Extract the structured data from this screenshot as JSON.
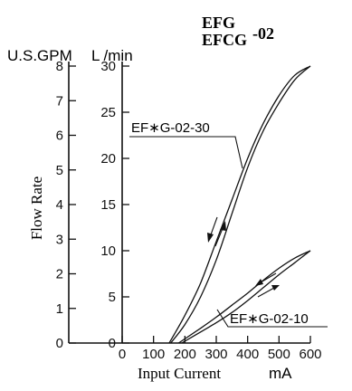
{
  "chart_data": {
    "type": "line",
    "title_line1": "EFG",
    "title_line2": "EFCG",
    "title_suffix": "-02",
    "xlabel": "Input Current",
    "xunit": "mA",
    "ylabel": "Flow Rate",
    "y_left_unit": "U.S.GPM",
    "y_right_unit": "L /min",
    "xlim": [
      0,
      600
    ],
    "ylim_lpm": [
      0,
      30
    ],
    "ylim_gpm": [
      0,
      8
    ],
    "x_ticks": [
      0,
      100,
      200,
      300,
      400,
      500,
      600
    ],
    "y_ticks_lpm": [
      0,
      5,
      10,
      15,
      20,
      25,
      30
    ],
    "y_ticks_gpm": [
      0,
      1,
      2,
      3,
      4,
      5,
      6,
      7,
      8
    ],
    "series": [
      {
        "name": "EF∗G-02-30",
        "increasing": [
          [
            155,
            0
          ],
          [
            200,
            2
          ],
          [
            250,
            5
          ],
          [
            300,
            9
          ],
          [
            350,
            14
          ],
          [
            400,
            19
          ],
          [
            450,
            23
          ],
          [
            500,
            26
          ],
          [
            550,
            28.5
          ],
          [
            600,
            30
          ]
        ],
        "decreasing": [
          [
            150,
            0
          ],
          [
            200,
            3
          ],
          [
            250,
            6.5
          ],
          [
            300,
            11
          ],
          [
            350,
            15.5
          ],
          [
            400,
            20
          ],
          [
            450,
            23.8
          ],
          [
            500,
            26.8
          ],
          [
            550,
            29
          ],
          [
            600,
            30
          ]
        ]
      },
      {
        "name": "EF∗G-02-10",
        "increasing": [
          [
            190,
            0
          ],
          [
            250,
            1.2
          ],
          [
            300,
            2.2
          ],
          [
            350,
            3.3
          ],
          [
            400,
            4.6
          ],
          [
            450,
            6
          ],
          [
            500,
            7.4
          ],
          [
            550,
            8.7
          ],
          [
            600,
            10
          ]
        ],
        "decreasing": [
          [
            180,
            0
          ],
          [
            250,
            1.6
          ],
          [
            300,
            2.8
          ],
          [
            350,
            4.1
          ],
          [
            400,
            5.4
          ],
          [
            450,
            6.8
          ],
          [
            500,
            8.1
          ],
          [
            550,
            9.2
          ],
          [
            600,
            10
          ]
        ]
      }
    ]
  }
}
